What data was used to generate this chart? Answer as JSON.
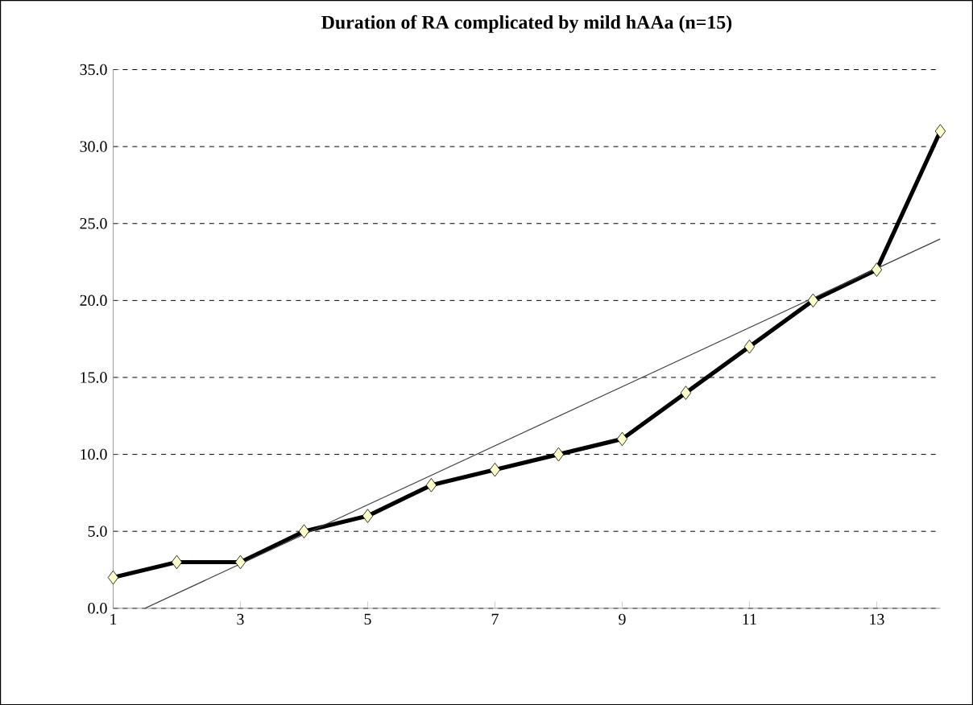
{
  "chart_data": {
    "type": "line",
    "title": "Duration of RA complicated by mild hAAa (n=15)",
    "x": [
      1,
      2,
      3,
      4,
      5,
      6,
      7,
      8,
      9,
      10,
      11,
      12,
      13,
      14
    ],
    "series": [
      {
        "color": "#000000",
        "values": [
          2,
          3,
          3,
          5,
          6,
          8,
          9,
          10,
          11,
          14,
          17,
          20,
          22,
          31
        ]
      },
      {
        "type": "line",
        "color": "#404040",
        "x": [
          1.5,
          14
        ],
        "values": [
          0,
          24
        ],
        "marker": "none"
      }
    ],
    "xlim": [
      1,
      14
    ],
    "xticks": [
      1,
      3,
      5,
      7,
      9,
      11,
      13
    ],
    "ylim": [
      0,
      35
    ],
    "yticks": [
      {
        "value": 0,
        "label": "0.0"
      },
      {
        "value": 5,
        "label": "5.0"
      },
      {
        "value": 10,
        "label": "10.0"
      },
      {
        "value": 15,
        "label": "15.0"
      },
      {
        "value": 20,
        "label": "20.0"
      },
      {
        "value": 25,
        "label": "25.0"
      },
      {
        "value": 30,
        "label": "30.0"
      },
      {
        "value": 35,
        "label": "35.0"
      }
    ],
    "grid": "y",
    "marker": "diamond"
  }
}
